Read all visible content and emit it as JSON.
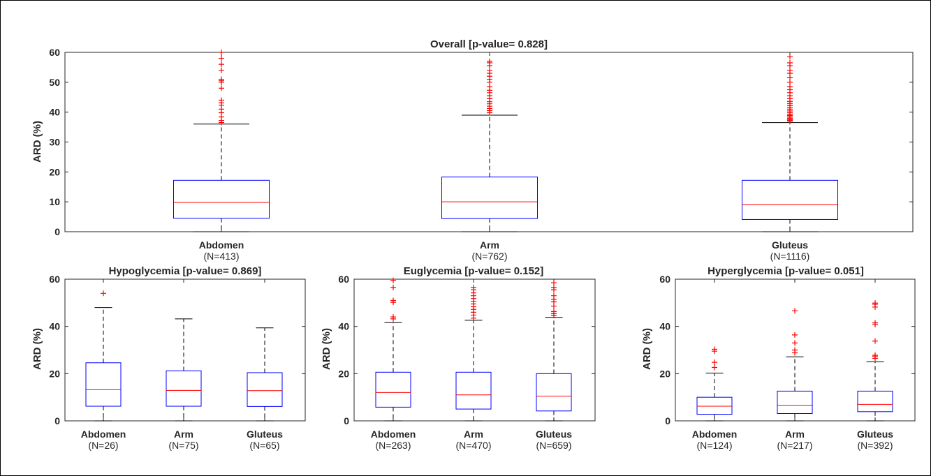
{
  "chart_data": [
    {
      "type": "boxplot",
      "title": "Overall [p-value= 0.828]",
      "ylabel": "ARD (%)",
      "ylim": [
        0,
        60
      ],
      "yticks": [
        "0",
        "10",
        "20",
        "30",
        "40",
        "50",
        "60"
      ],
      "categories": [
        {
          "label": "Abdomen",
          "n": "(N=413)"
        },
        {
          "label": "Arm",
          "n": "(N=762)"
        },
        {
          "label": "Gluteus",
          "n": "(N=1116)"
        }
      ],
      "boxes": [
        {
          "min": 0,
          "q1": 4.5,
          "median": 9.8,
          "q3": 17.2,
          "max": 36,
          "outliers": [
            36.5,
            37.2,
            38.4,
            39.8,
            41,
            42.3,
            43.1,
            44,
            48,
            50,
            50.5,
            51,
            54,
            56,
            58,
            60
          ]
        },
        {
          "min": 0,
          "q1": 4.4,
          "median": 10,
          "q3": 18.3,
          "max": 39,
          "outliers": [
            39.8,
            40.5,
            41.2,
            42,
            42.8,
            43.5,
            44.5,
            45.5,
            46.5,
            47.3,
            48.5,
            50,
            51,
            52,
            53,
            54,
            55.5,
            56.5,
            57
          ]
        },
        {
          "min": 0,
          "q1": 4.1,
          "median": 9,
          "q3": 17.2,
          "max": 36.5,
          "outliers": [
            37,
            37.3,
            37.6,
            38,
            38.4,
            38.9,
            39.3,
            39.8,
            40.4,
            41,
            41.6,
            42.2,
            42.9,
            43.6,
            44.5,
            45.5,
            46.5,
            47.5,
            48.5,
            50,
            51.5,
            53,
            54,
            55.5,
            56.5,
            58.5
          ]
        }
      ]
    },
    {
      "type": "boxplot",
      "title": "Hypoglycemia [p-value= 0.869]",
      "ylabel": "ARD (%)",
      "ylim": [
        0,
        60
      ],
      "yticks": [
        "0",
        "20",
        "40",
        "60"
      ],
      "categories": [
        {
          "label": "Abdomen",
          "n": "(N=26)"
        },
        {
          "label": "Arm",
          "n": "(N=75)"
        },
        {
          "label": "Gluteus",
          "n": "(N=65)"
        }
      ],
      "boxes": [
        {
          "min": 0,
          "q1": 6.2,
          "median": 13.2,
          "q3": 24.6,
          "max": 48,
          "outliers": [
            54
          ]
        },
        {
          "min": 0,
          "q1": 6.2,
          "median": 12.9,
          "q3": 21.2,
          "max": 43.2,
          "outliers": []
        },
        {
          "min": 0,
          "q1": 6.1,
          "median": 12.8,
          "q3": 20.4,
          "max": 39.4,
          "outliers": []
        }
      ]
    },
    {
      "type": "boxplot",
      "title": "Euglycemia [p-value= 0.152]",
      "ylabel": "ARD (%)",
      "ylim": [
        0,
        60
      ],
      "yticks": [
        "0",
        "20",
        "40",
        "60"
      ],
      "categories": [
        {
          "label": "Abdomen",
          "n": "(N=263)"
        },
        {
          "label": "Arm",
          "n": "(N=470)"
        },
        {
          "label": "Gluteus",
          "n": "(N=659)"
        }
      ],
      "boxes": [
        {
          "min": 0,
          "q1": 5.8,
          "median": 12,
          "q3": 20.6,
          "max": 41.6,
          "outliers": [
            43.2,
            44,
            50.2,
            51,
            56.5,
            59.5
          ]
        },
        {
          "min": 0,
          "q1": 5,
          "median": 11,
          "q3": 20.6,
          "max": 42.6,
          "outliers": [
            43.5,
            44.8,
            46,
            47.2,
            48.3,
            49.5,
            50.6,
            51.8,
            53,
            54.2,
            55.5,
            56.5
          ]
        },
        {
          "min": 0,
          "q1": 4.2,
          "median": 10.5,
          "q3": 20,
          "max": 43.8,
          "outliers": [
            44.6,
            45.4,
            46.3,
            48.6,
            50.4,
            51.5,
            53,
            55.5,
            56.5,
            58.5
          ]
        }
      ]
    },
    {
      "type": "boxplot",
      "title": "Hyperglycemia [p-value= 0.051]",
      "ylabel": "ARD (%)",
      "ylim": [
        0,
        60
      ],
      "yticks": [
        "0",
        "20",
        "40",
        "60"
      ],
      "categories": [
        {
          "label": "Abdomen",
          "n": "(N=124)"
        },
        {
          "label": "Arm",
          "n": "(N=217)"
        },
        {
          "label": "Gluteus",
          "n": "(N=392)"
        }
      ],
      "boxes": [
        {
          "min": 0,
          "q1": 2.8,
          "median": 6.2,
          "q3": 10,
          "max": 20.2,
          "outliers": [
            22.6,
            24.8,
            29.5,
            30.3
          ]
        },
        {
          "min": 0,
          "q1": 3.1,
          "median": 6.6,
          "q3": 12.6,
          "max": 27.1,
          "outliers": [
            28.8,
            30,
            33,
            36.4,
            46.6
          ]
        },
        {
          "min": 0,
          "q1": 3.9,
          "median": 7,
          "q3": 12.6,
          "max": 25,
          "outliers": [
            26.5,
            27.4,
            27.8,
            33.8,
            40.8,
            41.5,
            48.2,
            49.4,
            49.9
          ]
        }
      ]
    }
  ],
  "colors": {
    "box": "#0000ff",
    "median": "#ff0000",
    "outlier": "#ff0000",
    "whisker": "#000000",
    "axis": "#262626"
  }
}
